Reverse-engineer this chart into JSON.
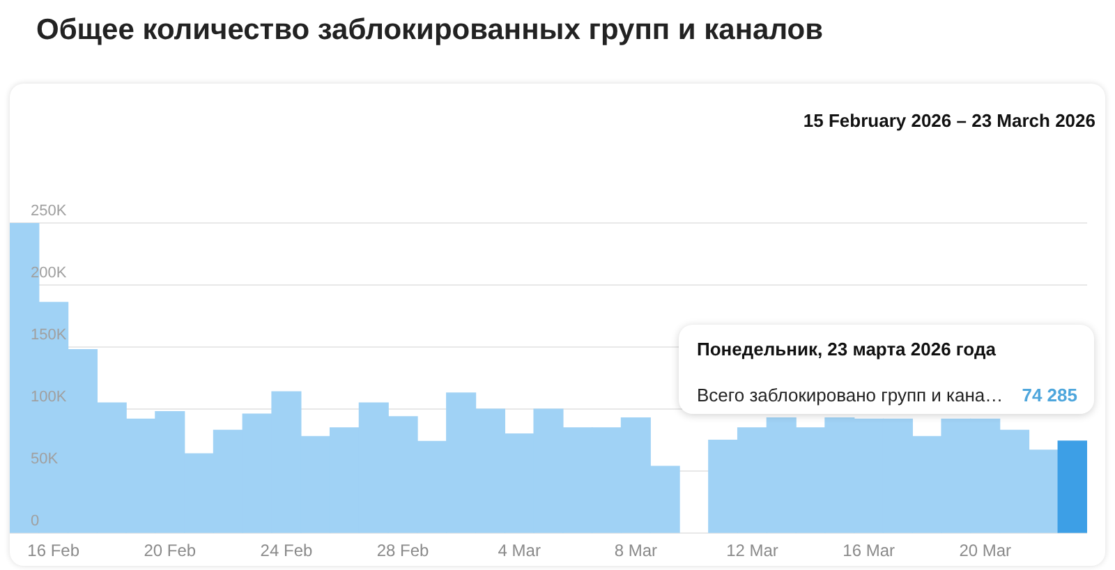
{
  "chart_data": {
    "type": "bar",
    "title": "Общее количество заблокированных групп и каналов",
    "subtitle": "15 February 2026 – 23 March 2026",
    "categories": [
      null,
      "16 Feb",
      null,
      null,
      null,
      "20 Feb",
      null,
      null,
      null,
      "24 Feb",
      null,
      null,
      null,
      "28 Feb",
      null,
      null,
      null,
      "4 Mar",
      null,
      null,
      null,
      "8 Mar",
      null,
      null,
      null,
      "12 Mar",
      null,
      null,
      null,
      "16 Mar",
      null,
      null,
      null,
      "20 Mar",
      null,
      null,
      null
    ],
    "values": [
      250000,
      186000,
      148000,
      105000,
      92000,
      98000,
      64000,
      83000,
      96000,
      114000,
      78000,
      85000,
      105000,
      94000,
      74000,
      113000,
      100000,
      80000,
      100000,
      85000,
      85000,
      93000,
      54000,
      null,
      75000,
      85000,
      93000,
      85000,
      93000,
      92000,
      92000,
      78000,
      92000,
      92000,
      83000,
      67000,
      74285
    ],
    "colors": [
      "#a0d2f5",
      "#a0d2f5",
      "#a0d2f5",
      "#a0d2f5",
      "#a0d2f5",
      "#a0d2f5",
      "#a0d2f5",
      "#a0d2f5",
      "#a0d2f5",
      "#a0d2f5",
      "#a0d2f5",
      "#a0d2f5",
      "#a0d2f5",
      "#a0d2f5",
      "#a0d2f5",
      "#a0d2f5",
      "#a0d2f5",
      "#a0d2f5",
      "#a0d2f5",
      "#a0d2f5",
      "#a0d2f5",
      "#a0d2f5",
      "#a0d2f5",
      "#a0d2f5",
      "#a0d2f5",
      "#a0d2f5",
      "#a0d2f5",
      "#a0d2f5",
      "#a0d2f5",
      "#a0d2f5",
      "#a0d2f5",
      "#a0d2f5",
      "#a0d2f5",
      "#a0d2f5",
      "#a0d2f5",
      "#a0d2f5",
      "#3d9fe6"
    ],
    "ylim": [
      0,
      250000
    ],
    "yticks": [
      {
        "value": 0,
        "label": "0"
      },
      {
        "value": 50000,
        "label": "50K"
      },
      {
        "value": 100000,
        "label": "100K"
      },
      {
        "value": 150000,
        "label": "150K"
      },
      {
        "value": 200000,
        "label": "200K"
      },
      {
        "value": 250000,
        "label": "250K"
      }
    ],
    "grid": "y",
    "legend": false,
    "annotations": [
      "Понедельник, 23 марта 2026 года",
      "Всего заблокировано групп и кана…",
      "74 285"
    ]
  }
}
